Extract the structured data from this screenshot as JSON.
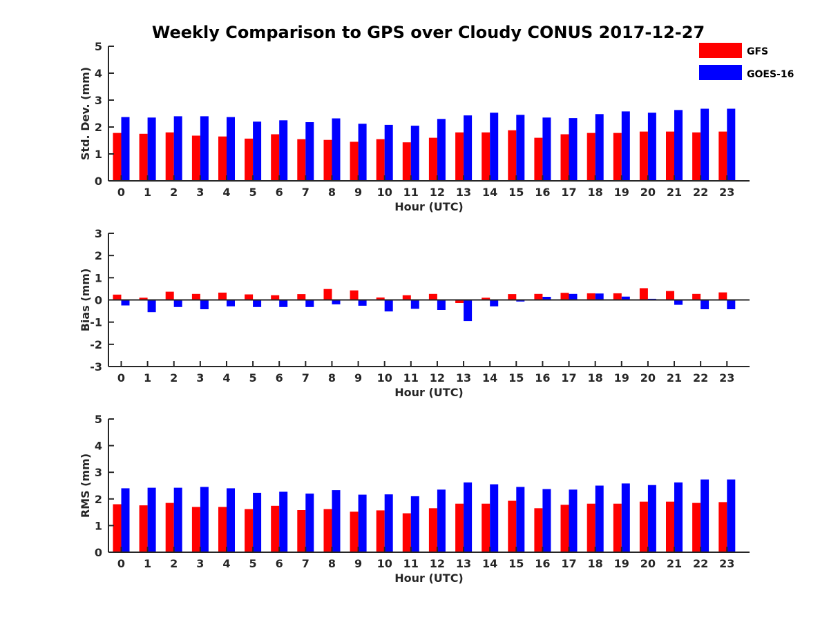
{
  "title": "Weekly Comparison to GPS over Cloudy CONUS 2017-12-27",
  "legend": {
    "placement": "top-right",
    "entries": [
      {
        "label": "GFS",
        "color": "#ff0000"
      },
      {
        "label": "GOES-16",
        "color": "#0000ff"
      }
    ]
  },
  "chart_data": [
    {
      "type": "bar",
      "xlabel": "Hour (UTC)",
      "ylabel": "Std. Dev. (mm)",
      "ylim": [
        0,
        5
      ],
      "yticks": [
        "0",
        "1",
        "2",
        "3",
        "4",
        "5"
      ],
      "categories": [
        "0",
        "1",
        "2",
        "3",
        "4",
        "5",
        "6",
        "7",
        "8",
        "9",
        "10",
        "11",
        "12",
        "13",
        "14",
        "15",
        "16",
        "17",
        "18",
        "19",
        "20",
        "21",
        "22",
        "23"
      ],
      "series": [
        {
          "name": "GFS",
          "color": "#ff0000",
          "values": [
            1.78,
            1.75,
            1.8,
            1.68,
            1.65,
            1.57,
            1.73,
            1.55,
            1.52,
            1.45,
            1.55,
            1.43,
            1.6,
            1.8,
            1.8,
            1.88,
            1.6,
            1.73,
            1.78,
            1.78,
            1.83,
            1.83,
            1.8,
            1.83
          ]
        },
        {
          "name": "GOES-16",
          "color": "#0000ff",
          "values": [
            2.37,
            2.35,
            2.4,
            2.4,
            2.37,
            2.2,
            2.25,
            2.18,
            2.32,
            2.12,
            2.08,
            2.05,
            2.3,
            2.43,
            2.53,
            2.45,
            2.35,
            2.33,
            2.48,
            2.58,
            2.53,
            2.63,
            2.68,
            2.68
          ]
        }
      ]
    },
    {
      "type": "bar",
      "xlabel": "Hour (UTC)",
      "ylabel": "Bias (mm)",
      "ylim": [
        -3,
        3
      ],
      "yticks": [
        "-3",
        "-2",
        "-1",
        "0",
        "1",
        "2",
        "3"
      ],
      "zero_line": true,
      "categories": [
        "0",
        "1",
        "2",
        "3",
        "4",
        "5",
        "6",
        "7",
        "8",
        "9",
        "10",
        "11",
        "12",
        "13",
        "14",
        "15",
        "16",
        "17",
        "18",
        "19",
        "20",
        "21",
        "22",
        "23"
      ],
      "series": [
        {
          "name": "GFS",
          "color": "#ff0000",
          "values": [
            0.24,
            0.1,
            0.37,
            0.27,
            0.33,
            0.25,
            0.21,
            0.26,
            0.49,
            0.43,
            0.11,
            0.21,
            0.27,
            -0.14,
            0.1,
            0.26,
            0.27,
            0.32,
            0.3,
            0.3,
            0.53,
            0.4,
            0.27,
            0.34
          ]
        },
        {
          "name": "GOES-16",
          "color": "#0000ff",
          "values": [
            -0.25,
            -0.55,
            -0.32,
            -0.42,
            -0.29,
            -0.32,
            -0.32,
            -0.32,
            -0.2,
            -0.26,
            -0.52,
            -0.4,
            -0.45,
            -0.95,
            -0.29,
            -0.07,
            0.14,
            0.27,
            0.29,
            0.15,
            0.05,
            -0.22,
            -0.42,
            -0.42
          ]
        }
      ]
    },
    {
      "type": "bar",
      "xlabel": "Hour (UTC)",
      "ylabel": "RMS (mm)",
      "ylim": [
        0,
        5
      ],
      "yticks": [
        "0",
        "1",
        "2",
        "3",
        "4",
        "5"
      ],
      "categories": [
        "0",
        "1",
        "2",
        "3",
        "4",
        "5",
        "6",
        "7",
        "8",
        "9",
        "10",
        "11",
        "12",
        "13",
        "14",
        "15",
        "16",
        "17",
        "18",
        "19",
        "20",
        "21",
        "22",
        "23"
      ],
      "series": [
        {
          "name": "GFS",
          "color": "#ff0000",
          "values": [
            1.8,
            1.76,
            1.85,
            1.7,
            1.7,
            1.62,
            1.74,
            1.58,
            1.62,
            1.52,
            1.57,
            1.46,
            1.65,
            1.82,
            1.82,
            1.93,
            1.65,
            1.78,
            1.82,
            1.82,
            1.9,
            1.9,
            1.85,
            1.88
          ]
        },
        {
          "name": "GOES-16",
          "color": "#0000ff",
          "values": [
            2.4,
            2.42,
            2.42,
            2.45,
            2.4,
            2.23,
            2.27,
            2.2,
            2.33,
            2.16,
            2.17,
            2.1,
            2.35,
            2.62,
            2.55,
            2.45,
            2.37,
            2.35,
            2.5,
            2.58,
            2.52,
            2.62,
            2.73,
            2.73
          ]
        }
      ]
    }
  ]
}
